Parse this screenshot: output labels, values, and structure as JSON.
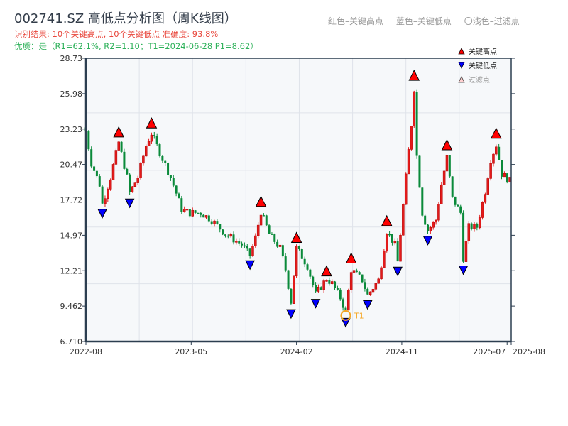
{
  "header": {
    "title": "002741.SZ 高低点分析图（周K线图）",
    "result_line": "识别结果: 10个关键高点, 10个关键低点   准确度: 93.8%",
    "quality_line": "优质：是（R1=62.1%, R2=1.10；T1=2024-06-28 P1=8.62）",
    "legend_red": "红色–关键高点",
    "legend_blue": "蓝色–关键低点",
    "legend_light": "〇浅色–过滤点"
  },
  "colors": {
    "up": "#e31b1b",
    "down": "#0a8a3a",
    "high_marker": "#ff0000",
    "low_marker": "#0000ff",
    "t1": "#f5a623",
    "plot_bg": "#f6f8fa",
    "axis": "#2c3e50"
  },
  "chart_data": {
    "type": "candlestick",
    "title": "002741.SZ 高低点分析图（周K线图）",
    "xlabel": "",
    "ylabel": "",
    "ylim": [
      6.71,
      28.73
    ],
    "y_ticks": [
      "28.73",
      "25.98",
      "23.23",
      "20.47",
      "17.72",
      "14.97",
      "12.21",
      "9.462",
      "6.710"
    ],
    "x_ticks": [
      {
        "week": 0,
        "label": "2022-08"
      },
      {
        "week": 38.5,
        "label": "2023-05"
      },
      {
        "week": 77,
        "label": "2024-02"
      },
      {
        "week": 115.5,
        "label": "2024-11"
      },
      {
        "week": 154,
        "label": "2025-07"
      },
      {
        "week": 155.5,
        "label": "2025-08"
      }
    ],
    "grid_prices": [
      24.49,
      20.02,
      15.61,
      11.2
    ],
    "grid_weeks": [
      19.5,
      39,
      58.5,
      78,
      97.5,
      117,
      136.5
    ],
    "weeks": 156,
    "close_path": [
      [
        0,
        23.05
      ],
      [
        2,
        20.57
      ],
      [
        5,
        18.92
      ],
      [
        6,
        17.4
      ],
      [
        9,
        19.47
      ],
      [
        12,
        22.2
      ],
      [
        15,
        19.47
      ],
      [
        16,
        18.26
      ],
      [
        19,
        19.47
      ],
      [
        22,
        21.95
      ],
      [
        24,
        22.9
      ],
      [
        27,
        21.4
      ],
      [
        31,
        19.47
      ],
      [
        35,
        16.99
      ],
      [
        38,
        16.71
      ],
      [
        42,
        16.71
      ],
      [
        46,
        16.16
      ],
      [
        51,
        15.06
      ],
      [
        57,
        14.23
      ],
      [
        60,
        13.41
      ],
      [
        62,
        14.78
      ],
      [
        64,
        16.8
      ],
      [
        67,
        15.06
      ],
      [
        71,
        13.96
      ],
      [
        73,
        12.3
      ],
      [
        75,
        9.8
      ],
      [
        77,
        14.0
      ],
      [
        81,
        12.58
      ],
      [
        84,
        10.37
      ],
      [
        88,
        11.6
      ],
      [
        90,
        11.2
      ],
      [
        93,
        10.1
      ],
      [
        95,
        9.0
      ],
      [
        97,
        12.3
      ],
      [
        101,
        11.48
      ],
      [
        103,
        10.3
      ],
      [
        107,
        11.48
      ],
      [
        110,
        15.3
      ],
      [
        113,
        14.23
      ],
      [
        114,
        12.9
      ],
      [
        117,
        19.47
      ],
      [
        119,
        23.6
      ],
      [
        120,
        26.4
      ],
      [
        121,
        21.12
      ],
      [
        123,
        16.71
      ],
      [
        125,
        15.33
      ],
      [
        128,
        16.16
      ],
      [
        130,
        18.92
      ],
      [
        132,
        21.0
      ],
      [
        134,
        17.82
      ],
      [
        137,
        16.71
      ],
      [
        138,
        13.2
      ],
      [
        140,
        15.61
      ],
      [
        143,
        15.61
      ],
      [
        146,
        18.4
      ],
      [
        148,
        20.85
      ],
      [
        150,
        22.0
      ],
      [
        152,
        19.74
      ],
      [
        155,
        19.19
      ]
    ],
    "key_highs": [
      [
        12,
        22.5
      ],
      [
        24,
        23.2
      ],
      [
        64,
        17.1
      ],
      [
        77,
        14.3
      ],
      [
        88,
        11.7
      ],
      [
        97,
        12.7
      ],
      [
        110,
        15.6
      ],
      [
        120,
        26.9
      ],
      [
        132,
        21.5
      ],
      [
        150,
        22.4
      ]
    ],
    "key_lows": [
      [
        6,
        17.1
      ],
      [
        16,
        17.9
      ],
      [
        60,
        13.1
      ],
      [
        75,
        9.3
      ],
      [
        84,
        10.1
      ],
      [
        95,
        8.62
      ],
      [
        103,
        10.0
      ],
      [
        114,
        12.6
      ],
      [
        125,
        15.0
      ],
      [
        138,
        12.7
      ]
    ],
    "t1": {
      "week": 95,
      "price": 8.62,
      "label": "T1",
      "date": "2024-06-28"
    },
    "legend": {
      "position": "top-right",
      "entries": [
        "关键高点",
        "关键低点",
        "过滤点"
      ]
    }
  }
}
